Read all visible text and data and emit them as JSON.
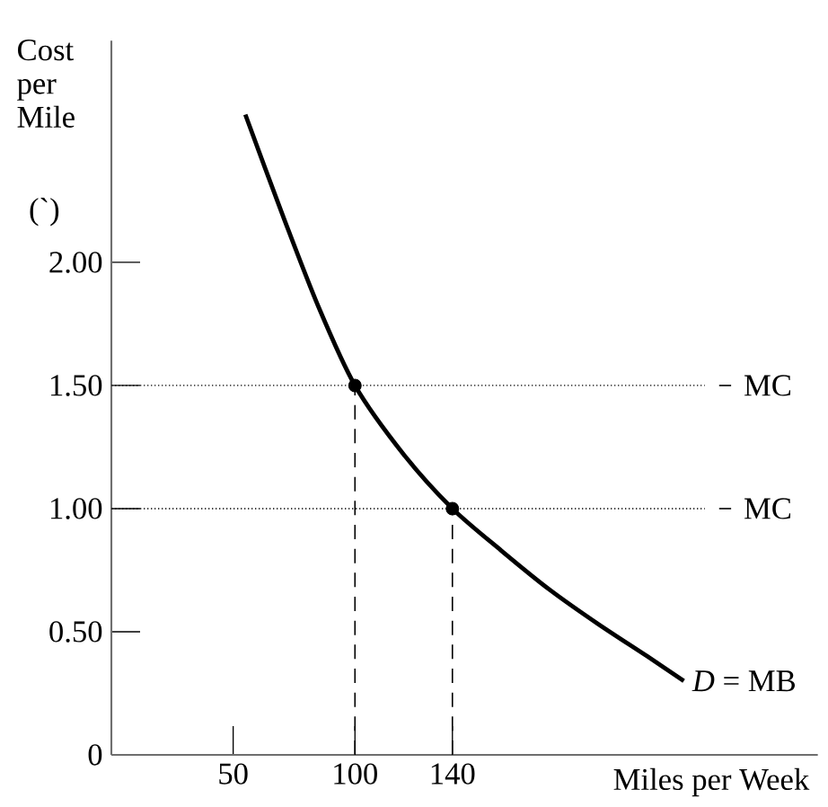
{
  "chart_data": {
    "type": "line",
    "xlabel": "Miles per Week",
    "ylabel": "Cost per Mile",
    "annotations": [
      "(`)",
      {
        "text": "*D* = MB",
        "x": 235,
        "y": 0.3
      }
    ],
    "xlim": [
      0,
      290
    ],
    "ylim": [
      0,
      2.9
    ],
    "xticks": [
      50,
      100,
      140
    ],
    "yticks": [
      0,
      {
        "value": 0.5,
        "label": "0.50"
      },
      {
        "value": 1.0,
        "label": "1.00"
      },
      {
        "value": 1.5,
        "label": "1.50"
      },
      {
        "value": 2.0,
        "label": "2.00"
      }
    ],
    "grid": false,
    "ref_lines": [
      {
        "axis": "y",
        "value": 1.5,
        "label": "MC",
        "line_style": "dotted",
        "color": "#000000"
      },
      {
        "axis": "y",
        "value": 1.0,
        "label": "MC",
        "line_style": "dotted",
        "color": "#000000"
      },
      {
        "axis": "x",
        "value": 100,
        "line_style": "dashed",
        "color": "#000000"
      },
      {
        "axis": "x",
        "value": 140,
        "line_style": "dashed",
        "color": "#000000"
      }
    ],
    "series": [
      {
        "color": "#000000",
        "marker": "none",
        "line_style": "solid",
        "x": [
          55,
          70,
          85,
          100,
          120,
          140,
          160,
          180,
          200,
          220,
          235
        ],
        "values": [
          2.6,
          2.2,
          1.82,
          1.5,
          1.22,
          1.0,
          0.83,
          0.67,
          0.53,
          0.4,
          0.3
        ]
      },
      {
        "type": "scatter",
        "color": "#000000",
        "marker": "circle",
        "x": [
          100,
          140
        ],
        "values": [
          1.5,
          1.0
        ]
      }
    ]
  }
}
